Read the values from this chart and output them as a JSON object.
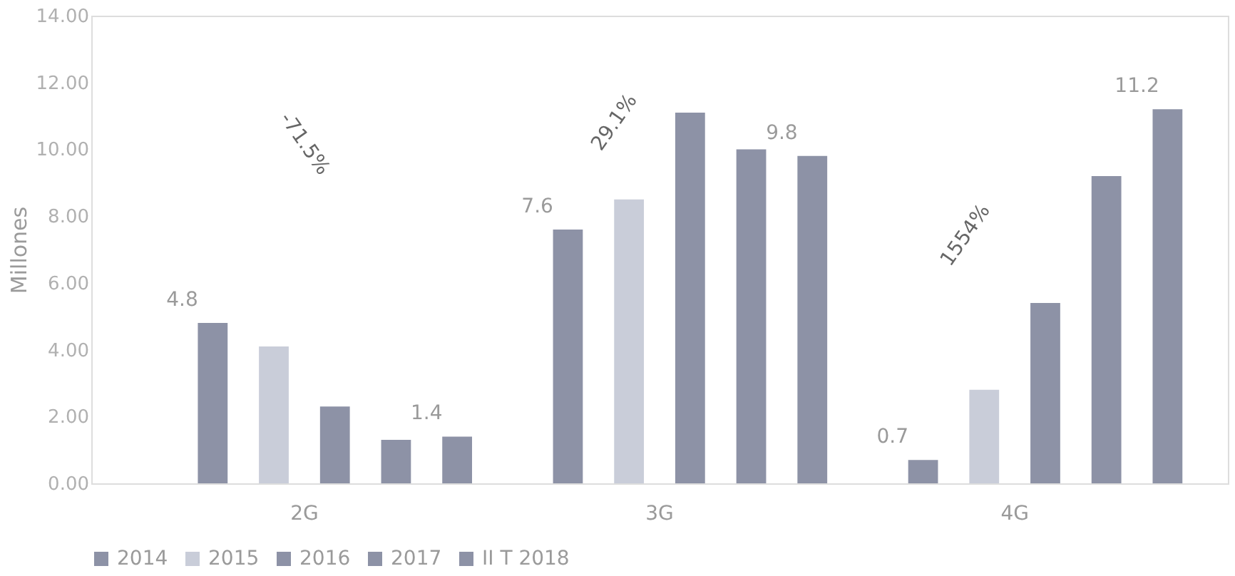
{
  "chart_data": {
    "type": "bar",
    "ylabel": "Millones",
    "categories": [
      "2G",
      "3G",
      "4G"
    ],
    "series": [
      {
        "name": "2014",
        "color": "#8d92a6",
        "values": [
          4.8,
          7.6,
          0.7
        ],
        "value_labels": [
          "4.8",
          "7.6",
          "0.7"
        ]
      },
      {
        "name": "2015",
        "color": "#c9cdd9",
        "values": [
          4.1,
          8.5,
          2.8
        ],
        "value_labels": [
          null,
          null,
          null
        ]
      },
      {
        "name": "2016",
        "color": "#8d92a6",
        "values": [
          2.3,
          11.1,
          5.4
        ],
        "value_labels": [
          null,
          null,
          null
        ]
      },
      {
        "name": "2017",
        "color": "#8d92a6",
        "values": [
          1.3,
          10.0,
          9.2
        ],
        "value_labels": [
          null,
          null,
          null
        ]
      },
      {
        "name": "II T 2018",
        "color": "#8d92a6",
        "values": [
          1.4,
          9.8,
          11.2
        ],
        "value_labels": [
          "1.4",
          "9.8",
          "11.2"
        ]
      }
    ],
    "ylim": [
      0,
      14
    ],
    "yticks": [
      {
        "value": 0,
        "label": "0.00"
      },
      {
        "value": 2,
        "label": "2.00"
      },
      {
        "value": 4,
        "label": "4.00"
      },
      {
        "value": 6,
        "label": "6.00"
      },
      {
        "value": 8,
        "label": "8.00"
      },
      {
        "value": 10,
        "label": "10.00"
      },
      {
        "value": 12,
        "label": "12.00"
      },
      {
        "value": 14,
        "label": "14.00"
      }
    ],
    "annotations": [
      "-71.5%",
      "29.1%",
      "1554%"
    ],
    "legend": "bottom",
    "grid": false
  }
}
